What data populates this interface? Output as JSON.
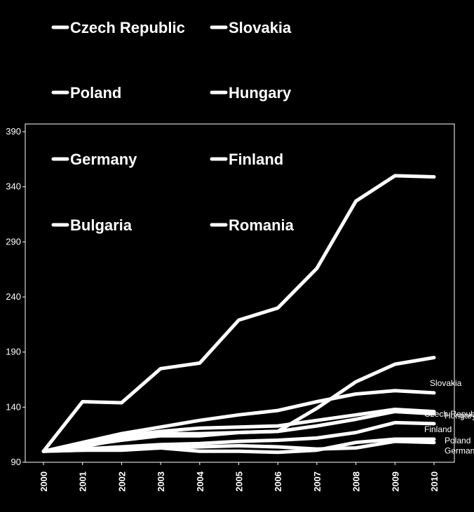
{
  "chart_data": {
    "type": "line",
    "title": "",
    "xlabel": "",
    "ylabel": "",
    "x": [
      "2000",
      "2001",
      "2002",
      "2003",
      "2004",
      "2005",
      "2006",
      "2007",
      "2008",
      "2009",
      "2010"
    ],
    "ylim": [
      90,
      400
    ],
    "yticks": [
      90,
      140,
      190,
      240,
      290,
      340,
      390
    ],
    "grid": false,
    "legend_placement": "top-left (two columns, inside top of plot)",
    "line_color": "#ffffff",
    "background_color": "#000000",
    "legend": [
      "Czech Republic",
      "Slovakia",
      "Poland",
      "Hungary",
      "Germany",
      "Finland",
      "Bulgaria",
      "Romania"
    ],
    "series": [
      {
        "name": "Romania",
        "values": [
          100,
          145,
          144,
          175,
          180,
          219,
          230,
          266,
          327,
          350,
          349
        ],
        "end_label": ""
      },
      {
        "name": "Bulgaria",
        "values": [
          100,
          104,
          111,
          116,
          116,
          117,
          118,
          139,
          163,
          179,
          185
        ],
        "end_label": ""
      },
      {
        "name": "Slovakia",
        "values": [
          100,
          108,
          116,
          122,
          128,
          133,
          137,
          145,
          152,
          155,
          153
        ],
        "end_label": "Slovakia"
      },
      {
        "name": "Hungary",
        "values": [
          100,
          106,
          114,
          118,
          121,
          122,
          123,
          128,
          133,
          138,
          136
        ],
        "end_label": "Hungary"
      },
      {
        "name": "Czech Republic",
        "values": [
          100,
          105,
          110,
          114,
          114,
          117,
          118,
          123,
          129,
          136,
          134
        ],
        "end_label": "Czech Republic"
      },
      {
        "name": "Finland",
        "values": [
          100,
          102,
          104,
          106,
          107,
          109,
          110,
          112,
          117,
          126,
          125
        ],
        "end_label": "Finland"
      },
      {
        "name": "Poland",
        "values": [
          100,
          101,
          102,
          103,
          100,
          100,
          99,
          101,
          108,
          111,
          111
        ],
        "end_label": "Poland"
      },
      {
        "name": "Germany",
        "values": [
          100,
          101,
          101,
          103,
          104,
          105,
          104,
          102,
          103,
          109,
          108
        ],
        "end_label": "Germany"
      }
    ]
  }
}
